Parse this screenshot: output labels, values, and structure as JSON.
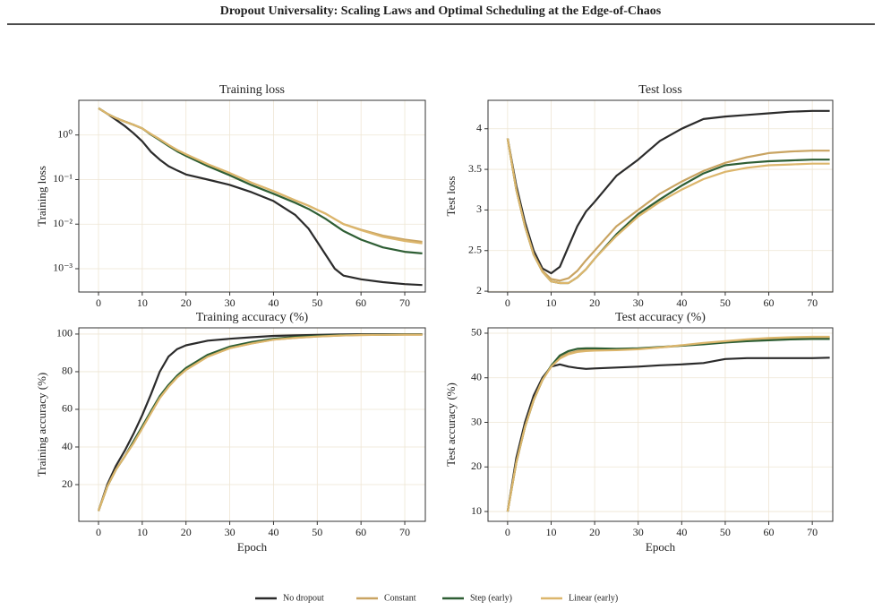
{
  "header": {
    "title": "Dropout Universality: Scaling Laws and Optimal Scheduling at the Edge-of-Chaos"
  },
  "chart_data": [
    {
      "type": "line",
      "title": "Training loss",
      "ylabel": "Training loss",
      "yscale": "log",
      "grid": true,
      "x": [
        0,
        2,
        4,
        6,
        8,
        10,
        12,
        14,
        16,
        18,
        20,
        25,
        30,
        35,
        40,
        45,
        48,
        50,
        52,
        54,
        56,
        60,
        65,
        70,
        74
      ],
      "xlim": [
        -4.5,
        74.7
      ],
      "xticks": [
        0,
        10,
        20,
        30,
        40,
        50,
        60,
        70
      ],
      "ylim": [
        0.0003,
        6
      ],
      "yticks": [
        {
          "value": 0.001,
          "label": "10⁻³"
        },
        {
          "value": 0.01,
          "label": "10⁻²"
        },
        {
          "value": 0.1,
          "label": "10⁻¹"
        },
        {
          "value": 1,
          "label": "10⁰"
        }
      ],
      "series": [
        {
          "name": "No dropout",
          "color": "#2b2b2b",
          "values": [
            4,
            3,
            2.2,
            1.6,
            1.1,
            0.72,
            0.42,
            0.28,
            0.2,
            0.16,
            0.13,
            0.1,
            0.076,
            0.052,
            0.033,
            0.016,
            0.008,
            0.004,
            0.002,
            0.001,
            0.0007,
            0.00058,
            0.0005,
            0.00045,
            0.00043
          ]
        },
        {
          "name": "Constant",
          "color": "#c9a462",
          "values": [
            4,
            3,
            2.4,
            2,
            1.7,
            1.4,
            1.05,
            0.8,
            0.6,
            0.46,
            0.37,
            0.22,
            0.14,
            0.085,
            0.055,
            0.034,
            0.026,
            0.021,
            0.017,
            0.013,
            0.01,
            0.0075,
            0.0055,
            0.0045,
            0.004
          ]
        },
        {
          "name": "Step (early)",
          "color": "#2e5e34",
          "values": [
            4,
            3,
            2.4,
            2,
            1.7,
            1.4,
            1.02,
            0.77,
            0.57,
            0.43,
            0.34,
            0.2,
            0.125,
            0.075,
            0.048,
            0.03,
            0.022,
            0.017,
            0.013,
            0.0095,
            0.007,
            0.0045,
            0.003,
            0.0024,
            0.0022
          ]
        },
        {
          "name": "Linear (early)",
          "color": "#dcb66c",
          "values": [
            4,
            3,
            2.4,
            2,
            1.7,
            1.4,
            1.05,
            0.8,
            0.6,
            0.46,
            0.37,
            0.22,
            0.14,
            0.085,
            0.055,
            0.034,
            0.026,
            0.021,
            0.017,
            0.013,
            0.01,
            0.0073,
            0.0052,
            0.0042,
            0.0037
          ]
        }
      ]
    },
    {
      "type": "line",
      "title": "Test loss",
      "ylabel": "Test loss",
      "grid": true,
      "x": [
        0,
        2,
        4,
        6,
        8,
        10,
        12,
        14,
        16,
        18,
        20,
        25,
        30,
        35,
        40,
        45,
        50,
        55,
        60,
        65,
        70,
        74
      ],
      "xlim": [
        -4.5,
        74.7
      ],
      "xticks": [
        0,
        10,
        20,
        30,
        40,
        50,
        60,
        70
      ],
      "ylim": [
        1.99,
        4.35
      ],
      "yticks": [
        2.0,
        2.5,
        3.0,
        3.5,
        4.0
      ],
      "series": [
        {
          "name": "No dropout",
          "color": "#2b2b2b",
          "values": [
            3.88,
            3.3,
            2.85,
            2.5,
            2.28,
            2.22,
            2.3,
            2.55,
            2.8,
            2.98,
            3.1,
            3.42,
            3.62,
            3.85,
            4.0,
            4.12,
            4.15,
            4.17,
            4.19,
            4.21,
            4.22,
            4.22
          ]
        },
        {
          "name": "Constant",
          "color": "#c9a462",
          "values": [
            3.88,
            3.25,
            2.8,
            2.45,
            2.25,
            2.15,
            2.13,
            2.16,
            2.25,
            2.38,
            2.5,
            2.8,
            3.0,
            3.2,
            3.35,
            3.48,
            3.58,
            3.65,
            3.7,
            3.72,
            3.73,
            3.73
          ]
        },
        {
          "name": "Step (early)",
          "color": "#2e5e34",
          "values": [
            3.88,
            3.25,
            2.8,
            2.45,
            2.24,
            2.12,
            2.1,
            2.1,
            2.17,
            2.27,
            2.4,
            2.7,
            2.95,
            3.13,
            3.3,
            3.45,
            3.55,
            3.58,
            3.6,
            3.61,
            3.62,
            3.62
          ]
        },
        {
          "name": "Linear (early)",
          "color": "#dcb66c",
          "values": [
            3.88,
            3.25,
            2.8,
            2.45,
            2.24,
            2.12,
            2.1,
            2.1,
            2.17,
            2.27,
            2.4,
            2.68,
            2.92,
            3.1,
            3.25,
            3.38,
            3.47,
            3.52,
            3.55,
            3.56,
            3.57,
            3.57
          ]
        }
      ]
    },
    {
      "type": "line",
      "title": "Training accuracy (%)",
      "ylabel": "Training accuracy (%)",
      "xlabel": "Epoch",
      "grid": true,
      "x": [
        0,
        2,
        4,
        6,
        8,
        10,
        12,
        14,
        16,
        18,
        20,
        25,
        30,
        35,
        40,
        45,
        50,
        55,
        60,
        65,
        70,
        74
      ],
      "xlim": [
        -4.5,
        74.7
      ],
      "xticks": [
        0,
        10,
        20,
        30,
        40,
        50,
        60,
        70
      ],
      "ylim": [
        0.5,
        103.3
      ],
      "yticks": [
        20,
        40,
        60,
        80,
        100
      ],
      "series": [
        {
          "name": "No dropout",
          "color": "#2b2b2b",
          "values": [
            6,
            20,
            30,
            38,
            47,
            57,
            68,
            80,
            88,
            92,
            94,
            96.5,
            97.5,
            98.3,
            99,
            99.3,
            99.6,
            99.8,
            99.9,
            99.9,
            99.9,
            99.9
          ]
        },
        {
          "name": "Constant",
          "color": "#c9a462",
          "values": [
            6,
            19,
            28,
            35,
            42,
            50,
            58,
            66,
            72,
            77,
            81,
            88,
            92.5,
            95,
            97,
            98,
            98.7,
            99.2,
            99.5,
            99.6,
            99.7,
            99.7
          ]
        },
        {
          "name": "Step (early)",
          "color": "#2e5e34",
          "values": [
            6,
            19,
            28,
            35,
            43,
            51,
            59,
            67,
            73,
            78,
            82,
            89,
            93.3,
            95.8,
            97.5,
            98.5,
            99,
            99.4,
            99.6,
            99.7,
            99.8,
            99.8
          ]
        },
        {
          "name": "Linear (early)",
          "color": "#dcb66c",
          "values": [
            6,
            19,
            28,
            35,
            42,
            50,
            58,
            66,
            72,
            77,
            81,
            88,
            92.5,
            95,
            97,
            98,
            98.7,
            99.2,
            99.5,
            99.6,
            99.7,
            99.7
          ]
        }
      ]
    },
    {
      "type": "line",
      "title": "Test accuracy (%)",
      "ylabel": "Test accuracy (%)",
      "xlabel": "Epoch",
      "grid": true,
      "x": [
        0,
        2,
        4,
        6,
        8,
        10,
        12,
        14,
        16,
        18,
        20,
        25,
        30,
        35,
        40,
        45,
        50,
        55,
        60,
        65,
        70,
        74
      ],
      "xlim": [
        -4.5,
        74.7
      ],
      "xticks": [
        0,
        10,
        20,
        30,
        40,
        50,
        60,
        70
      ],
      "ylim": [
        7.8,
        51.2
      ],
      "yticks": [
        10,
        20,
        30,
        40,
        50
      ],
      "series": [
        {
          "name": "No dropout",
          "color": "#2b2b2b",
          "values": [
            10,
            22,
            30,
            36,
            40,
            42.5,
            43,
            42.5,
            42.2,
            42,
            42.1,
            42.3,
            42.5,
            42.8,
            43,
            43.3,
            44.2,
            44.4,
            44.4,
            44.4,
            44.4,
            44.5
          ]
        },
        {
          "name": "Constant",
          "color": "#c9a462",
          "values": [
            10,
            21,
            29,
            35,
            39.5,
            42.5,
            44.5,
            45.5,
            46,
            46.2,
            46.3,
            46.3,
            46.5,
            46.8,
            47.2,
            47.6,
            48,
            48.4,
            48.6,
            48.8,
            49,
            49
          ]
        },
        {
          "name": "Step (early)",
          "color": "#2e5e34",
          "values": [
            10,
            21,
            29,
            35,
            39.5,
            42.7,
            45,
            46,
            46.5,
            46.6,
            46.6,
            46.5,
            46.6,
            46.9,
            47.2,
            47.5,
            47.9,
            48.2,
            48.4,
            48.6,
            48.7,
            48.7
          ]
        },
        {
          "name": "Linear (early)",
          "color": "#dcb66c",
          "values": [
            10,
            21,
            29,
            35,
            39.5,
            42.5,
            44.3,
            45.3,
            45.8,
            46,
            46.1,
            46.2,
            46.4,
            46.8,
            47.3,
            47.8,
            48.2,
            48.6,
            48.9,
            49.1,
            49.2,
            49.2
          ]
        }
      ]
    }
  ]
}
